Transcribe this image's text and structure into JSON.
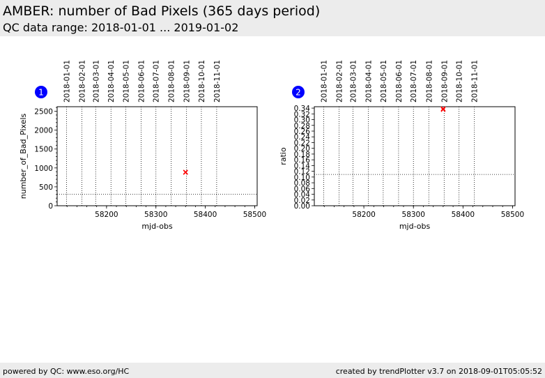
{
  "header": {
    "title": "AMBER: number of Bad Pixels (365 days period)",
    "subtitle": "QC data range: 2018-01-01 ... 2019-01-02"
  },
  "footer": {
    "left": "powered by QC: www.eso.org/HC",
    "right": "created by trendPlotter v3.7 on 2018-09-01T05:05:52"
  },
  "colors": {
    "marker": "#ff0000",
    "badge": "#0000ff",
    "band": "#ececec"
  },
  "chart_data": [
    {
      "type": "scatter",
      "badge": "1",
      "xlabel": "mjd-obs",
      "ylabel": "number_of_Bad_Pixels",
      "xlim": [
        58100,
        58505
      ],
      "ylim": [
        0,
        2620
      ],
      "xticks": [
        58200,
        58300,
        58400,
        58500
      ],
      "yticks": [
        0,
        500,
        1000,
        1500,
        2000,
        2500
      ],
      "date_lines": [
        {
          "mjd": 58119,
          "label": "2018-01-01"
        },
        {
          "mjd": 58150,
          "label": "2018-02-01"
        },
        {
          "mjd": 58178,
          "label": "2018-03-01"
        },
        {
          "mjd": 58209,
          "label": "2018-04-01"
        },
        {
          "mjd": 58239,
          "label": "2018-05-01"
        },
        {
          "mjd": 58270,
          "label": "2018-06-01"
        },
        {
          "mjd": 58300,
          "label": "2018-07-01"
        },
        {
          "mjd": 58331,
          "label": "2018-08-01"
        },
        {
          "mjd": 58362,
          "label": "2018-09-01"
        },
        {
          "mjd": 58392,
          "label": "2018-10-01"
        },
        {
          "mjd": 58423,
          "label": "2018-11-01"
        }
      ],
      "hline": 305,
      "points": [
        {
          "x": 58360,
          "y": 880
        },
        {
          "x": 58360,
          "y": 890
        }
      ]
    },
    {
      "type": "scatter",
      "badge": "2",
      "xlabel": "mjd-obs",
      "ylabel": "ratio",
      "xlim": [
        58100,
        58505
      ],
      "ylim": [
        0,
        0.345
      ],
      "xticks": [
        58200,
        58300,
        58400,
        58500
      ],
      "yticks": [
        0.0,
        0.02,
        0.04,
        0.06,
        0.08,
        0.1,
        0.12,
        0.14,
        0.16,
        0.18,
        0.2,
        0.22,
        0.24,
        0.26,
        0.28,
        0.3,
        0.32,
        0.34
      ],
      "ytick_labels": [
        "0.00",
        "0.02",
        "0.04",
        "0.06",
        "0.08",
        "0.10",
        "0.12",
        "0.14",
        "0.16",
        "0.18",
        "0.20",
        "0.22",
        "0.24",
        "0.26",
        "0.28",
        "0.30",
        "0.32",
        "0.34"
      ],
      "date_lines": [
        {
          "mjd": 58119,
          "label": "2018-01-01"
        },
        {
          "mjd": 58150,
          "label": "2018-02-01"
        },
        {
          "mjd": 58178,
          "label": "2018-03-01"
        },
        {
          "mjd": 58209,
          "label": "2018-04-01"
        },
        {
          "mjd": 58239,
          "label": "2018-05-01"
        },
        {
          "mjd": 58270,
          "label": "2018-06-01"
        },
        {
          "mjd": 58300,
          "label": "2018-07-01"
        },
        {
          "mjd": 58331,
          "label": "2018-08-01"
        },
        {
          "mjd": 58362,
          "label": "2018-09-01"
        },
        {
          "mjd": 58392,
          "label": "2018-10-01"
        },
        {
          "mjd": 58423,
          "label": "2018-11-01"
        }
      ],
      "hline": 0.109,
      "points": [
        {
          "x": 58360,
          "y": 0.335
        },
        {
          "x": 58360,
          "y": 0.338
        }
      ]
    }
  ]
}
